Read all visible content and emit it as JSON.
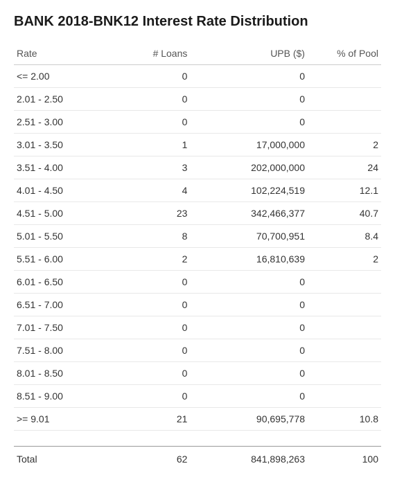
{
  "title": "BANK 2018-BNK12 Interest Rate Distribution",
  "table": {
    "type": "table",
    "columns": [
      {
        "key": "rate",
        "label": "Rate",
        "align": "left",
        "width": "28%"
      },
      {
        "key": "loans",
        "label": "# Loans",
        "align": "right",
        "width": "20%"
      },
      {
        "key": "upb",
        "label": "UPB ($)",
        "align": "right",
        "width": "32%"
      },
      {
        "key": "pct",
        "label": "% of Pool",
        "align": "right",
        "width": "20%"
      }
    ],
    "rows": [
      {
        "rate": "<= 2.00",
        "loans": "0",
        "upb": "0",
        "pct": ""
      },
      {
        "rate": "2.01 - 2.50",
        "loans": "0",
        "upb": "0",
        "pct": ""
      },
      {
        "rate": "2.51 - 3.00",
        "loans": "0",
        "upb": "0",
        "pct": ""
      },
      {
        "rate": "3.01 - 3.50",
        "loans": "1",
        "upb": "17,000,000",
        "pct": "2"
      },
      {
        "rate": "3.51 - 4.00",
        "loans": "3",
        "upb": "202,000,000",
        "pct": "24"
      },
      {
        "rate": "4.01 - 4.50",
        "loans": "4",
        "upb": "102,224,519",
        "pct": "12.1"
      },
      {
        "rate": "4.51 - 5.00",
        "loans": "23",
        "upb": "342,466,377",
        "pct": "40.7"
      },
      {
        "rate": "5.01 - 5.50",
        "loans": "8",
        "upb": "70,700,951",
        "pct": "8.4"
      },
      {
        "rate": "5.51 - 6.00",
        "loans": "2",
        "upb": "16,810,639",
        "pct": "2"
      },
      {
        "rate": "6.01 - 6.50",
        "loans": "0",
        "upb": "0",
        "pct": ""
      },
      {
        "rate": "6.51 - 7.00",
        "loans": "0",
        "upb": "0",
        "pct": ""
      },
      {
        "rate": "7.01 - 7.50",
        "loans": "0",
        "upb": "0",
        "pct": ""
      },
      {
        "rate": "7.51 - 8.00",
        "loans": "0",
        "upb": "0",
        "pct": ""
      },
      {
        "rate": "8.01 - 8.50",
        "loans": "0",
        "upb": "0",
        "pct": ""
      },
      {
        "rate": "8.51 - 9.00",
        "loans": "0",
        "upb": "0",
        "pct": ""
      },
      {
        "rate": ">= 9.01",
        "loans": "21",
        "upb": "90,695,778",
        "pct": "10.8"
      }
    ],
    "total": {
      "rate": "Total",
      "loans": "62",
      "upb": "841,898,263",
      "pct": "100"
    },
    "colors": {
      "background": "#ffffff",
      "text": "#333333",
      "title": "#1a1a1a",
      "header_text": "#555555",
      "header_border": "#cccccc",
      "row_border": "#e8e8e8",
      "total_border": "#999999"
    },
    "font_size": 14,
    "title_font_size": 20
  }
}
